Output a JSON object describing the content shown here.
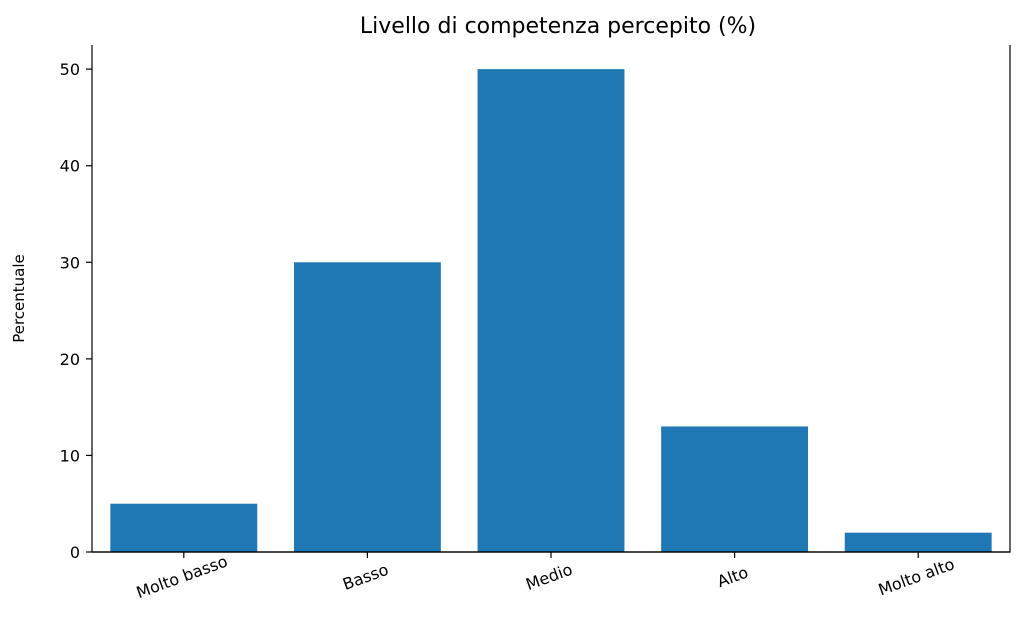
{
  "chart_data": {
    "type": "bar",
    "title": "Livello di competenza percepito (%)",
    "xlabel": "",
    "ylabel": "Percentuale",
    "categories": [
      "Molto basso",
      "Basso",
      "Medio",
      "Alto",
      "Molto alto"
    ],
    "values": [
      5,
      30,
      50,
      13,
      2
    ],
    "ylim": [
      0,
      52.5
    ],
    "yticks": [
      0,
      10,
      20,
      30,
      40,
      50
    ],
    "grid": false,
    "bar_color": "#1f77b4",
    "axis_color": "#000000"
  }
}
